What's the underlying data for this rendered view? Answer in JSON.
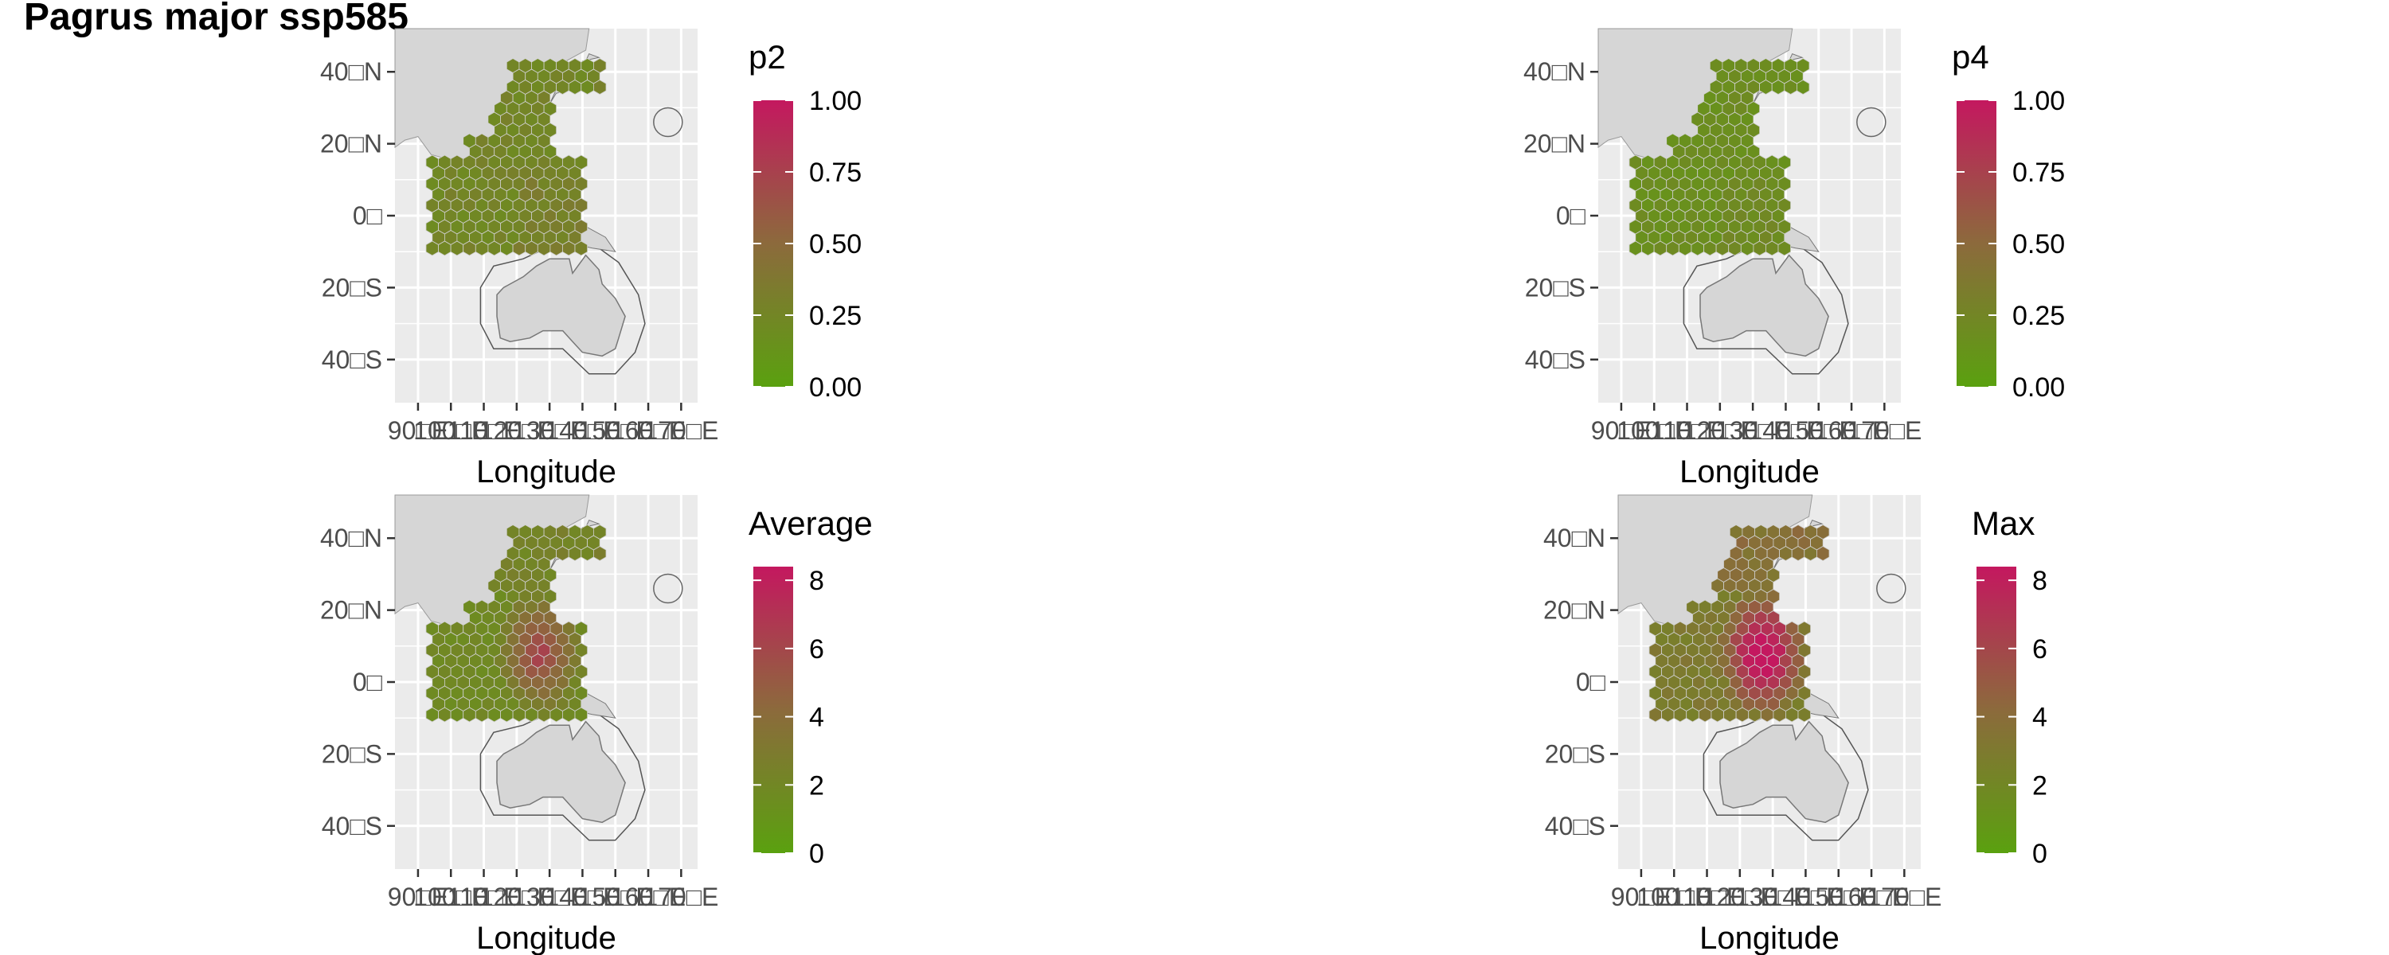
{
  "title": "Pagrus major ssp585",
  "lat_labels": [
    "40□N",
    "20□N",
    "0□",
    "20□S",
    "40□S"
  ],
  "lon_labels": [
    "90□E",
    "100□E",
    "110□E",
    "120□E",
    "130□E",
    "140□E",
    "150□E",
    "160□E",
    "170□E"
  ],
  "xlabel": "Longitude",
  "colors": {
    "low": "#5aa10f",
    "mid": "#8c6a3c",
    "high": "#c4185f",
    "land": "#d6d6d6",
    "panel": "#ebebeb",
    "grid": "#ffffff"
  },
  "panels": [
    {
      "id": "p2",
      "legend_title": "p2",
      "legend_ticks": [
        "1.00",
        "0.75",
        "0.50",
        "0.25",
        "0.00"
      ],
      "scale": [
        0,
        1
      ],
      "intensity": 0.32,
      "pattern": "prob"
    },
    {
      "id": "p4",
      "legend_title": "p4",
      "legend_ticks": [
        "1.00",
        "0.75",
        "0.50",
        "0.25",
        "0.00"
      ],
      "scale": [
        0,
        1
      ],
      "intensity": 0.22,
      "pattern": "prob"
    },
    {
      "id": "average",
      "legend_title": "Average",
      "legend_ticks": [
        "8",
        "6",
        "4",
        "2",
        "0"
      ],
      "scale": [
        0,
        8.4
      ],
      "intensity": 0.75,
      "pattern": "avg"
    },
    {
      "id": "max",
      "legend_title": "Max",
      "legend_ticks": [
        "8",
        "6",
        "4",
        "2",
        "0"
      ],
      "scale": [
        0,
        8.4
      ],
      "intensity": 1.0,
      "pattern": "max"
    }
  ]
}
